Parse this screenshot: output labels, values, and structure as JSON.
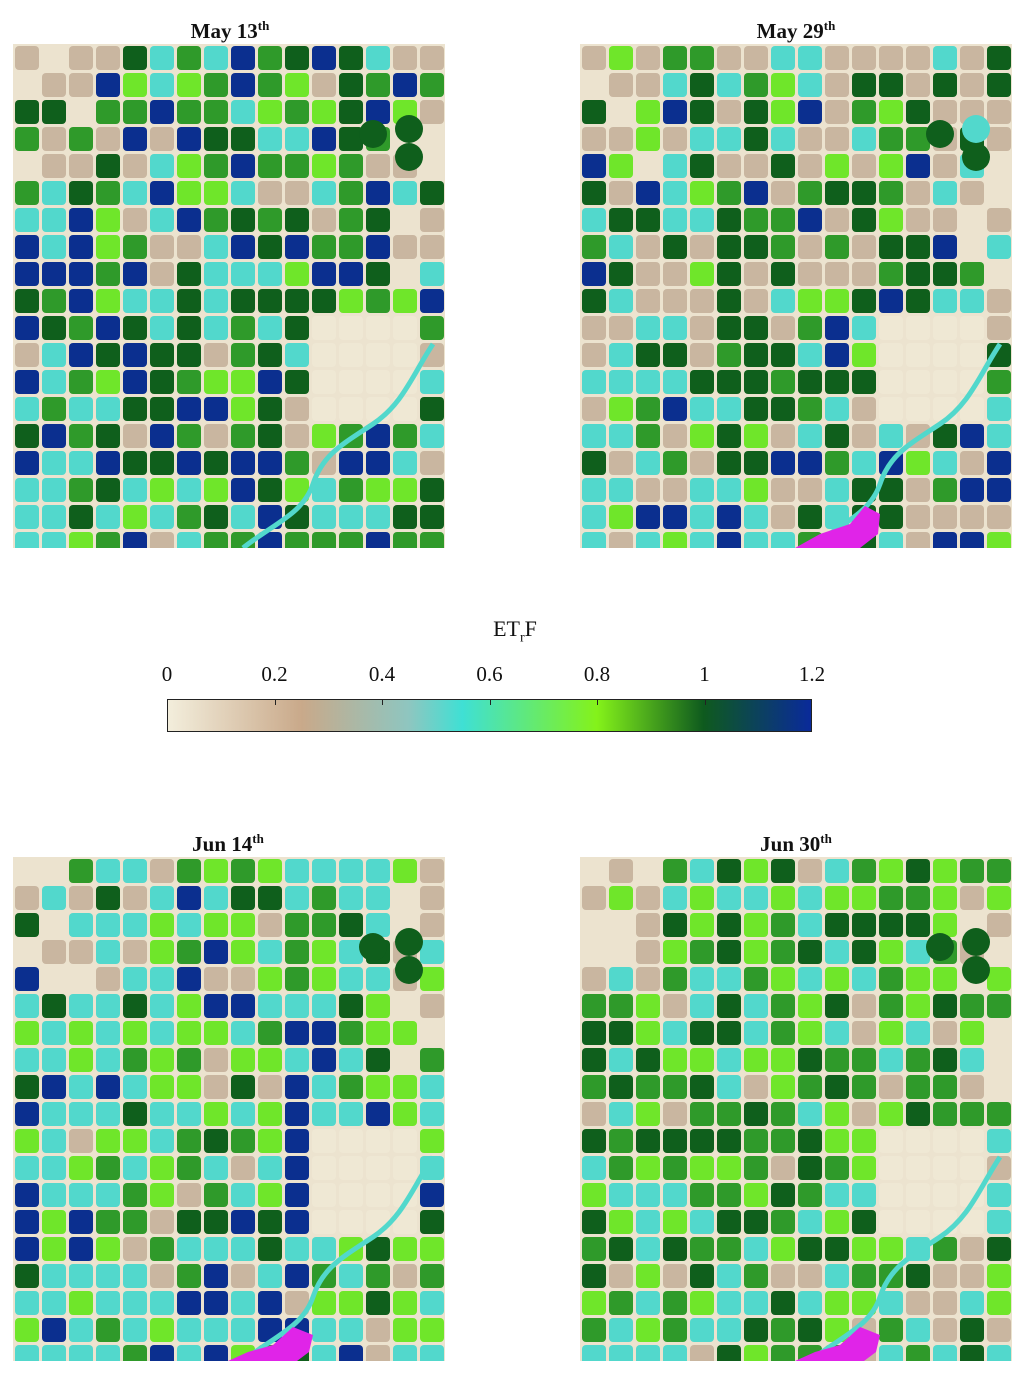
{
  "panels": [
    {
      "id": "may13",
      "label": "May 13",
      "suffix": "th",
      "tone": "wet"
    },
    {
      "id": "may29",
      "label": "May 29",
      "suffix": "th",
      "tone": "mid"
    },
    {
      "id": "jun14",
      "label": "Jun 14",
      "suffix": "th",
      "tone": "mixed"
    },
    {
      "id": "jun30",
      "label": "Jun 30",
      "suffix": "th",
      "tone": "green"
    }
  ],
  "colorbar": {
    "title_main": "ET",
    "title_sub": "r",
    "title_end": "F",
    "ticks": [
      "0",
      "0.2",
      "0.4",
      "0.6",
      "0.8",
      "1",
      "1.2"
    ],
    "min": 0,
    "max": 1.2,
    "stops": [
      {
        "v": 0.0,
        "color": "#f3eedc"
      },
      {
        "v": 0.25,
        "color": "#c9a98a"
      },
      {
        "v": 0.45,
        "color": "#8ec6c0"
      },
      {
        "v": 0.55,
        "color": "#3fe0d4"
      },
      {
        "v": 0.8,
        "color": "#84f21a"
      },
      {
        "v": 1.0,
        "color": "#0e5a1e"
      },
      {
        "v": 1.2,
        "color": "#0a2a9a"
      }
    ]
  },
  "colors": {
    "background": "#ece3cf",
    "bare": "#c9b6a0",
    "cyan": "#52d8cc",
    "lightgreen": "#6fe62a",
    "green": "#2f9a2a",
    "darkgreen": "#0f5f1c",
    "blue": "#0b2f8f",
    "water": "#e024e8"
  }
}
